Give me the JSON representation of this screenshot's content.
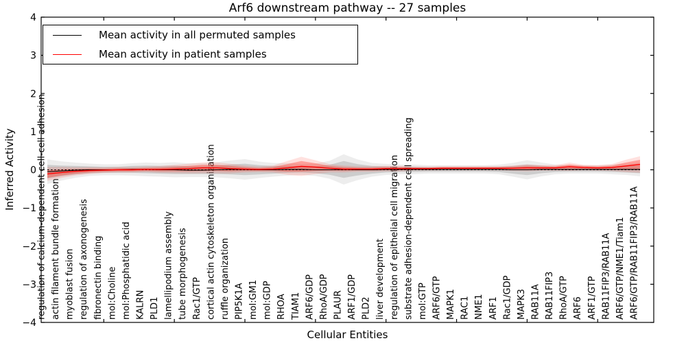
{
  "title": "Arf6 downstream pathway -- 27 samples",
  "ylabel": "Inferred Activity",
  "xlabel": "Cellular Entities",
  "legend": {
    "entries": [
      {
        "label": "Mean activity in all permuted samples",
        "color": "#000000"
      },
      {
        "label": "Mean activity in patient samples",
        "color": "#ff0000"
      }
    ],
    "position": "upper left"
  },
  "chart_data": {
    "type": "line",
    "title": "Arf6 downstream pathway -- 27 samples",
    "xlabel": "Cellular Entities",
    "ylabel": "Inferred Activity",
    "ylim": [
      -4,
      4
    ],
    "y_ticks": [
      4,
      3,
      2,
      1,
      0,
      -1,
      -2,
      -3,
      -4
    ],
    "y_tick_labels": [
      "4",
      "3",
      "2",
      "1",
      "0",
      "−1",
      "−2",
      "−3",
      "−4"
    ],
    "x_major_tick_indices": [
      4,
      9,
      14,
      19,
      24,
      29,
      34,
      39
    ],
    "grid": false,
    "zero_reference_line": {
      "style": "dashed",
      "color": "#000000",
      "y": 0
    },
    "legend_position": "upper left",
    "categories": [
      "regulation of calcium-dependent cell-cell adhesion",
      "actin filament bundle formation",
      "myoblast fusion",
      "regulation of axonogenesis",
      "fibronectin binding",
      "mol:Choline",
      "mol:Phosphatidic acid",
      "KALRN",
      "PLD1",
      "lamellipodium assembly",
      "tube morphogenesis",
      "Rac1/GTP",
      "cortical actin cytoskeleton organization",
      "ruffle organization",
      "PIP5K1A",
      "mol:GM1",
      "mol:GDP",
      "RHOA",
      "TIAM1",
      "ARF6/GDP",
      "RhoA/GDP",
      "PLAUR",
      "ARF1/GDP",
      "PLD2",
      "liver development",
      "regulation of epithelial cell migration",
      "substrate adhesion-dependent cell spreading",
      "mol:GTP",
      "ARF6/GTP",
      "MAPK1",
      "RAC1",
      "NME1",
      "ARF1",
      "Rac1/GDP",
      "MAPK3",
      "RAB11A",
      "RAB11FIP3",
      "RhoA/GTP",
      "ARF6",
      "ARF1/GTP",
      "RAB11FIP3/RAB11A",
      "ARF6/GTP/NME1/Tiam1",
      "ARF6/GTP/RAB11FIP3/RAB11A"
    ],
    "series": [
      {
        "name": "Mean activity in all permuted samples",
        "color": "#000000",
        "style": "solid",
        "values": [
          -0.05,
          -0.03,
          -0.01,
          0,
          0,
          0,
          0.01,
          0.01,
          0,
          0,
          -0.01,
          -0.01,
          0,
          0.01,
          0.01,
          0,
          0,
          0.01,
          0.01,
          0,
          0,
          0.01,
          0,
          0,
          0.01,
          0.01,
          0.01,
          0.01,
          0.01,
          0.01,
          0.01,
          0.01,
          0.01,
          0,
          0,
          0.01,
          0.01,
          0.01,
          0.01,
          0.01,
          0.01,
          0.01,
          0.01
        ]
      },
      {
        "name": "Mean activity in patient samples",
        "color": "#ff0000",
        "style": "solid",
        "values": [
          -0.11,
          -0.07,
          -0.04,
          -0.02,
          -0.01,
          0,
          0,
          0.01,
          0.01,
          0.02,
          0.03,
          0.05,
          0.05,
          0.03,
          0.02,
          0.01,
          0.02,
          0.05,
          0.09,
          0.07,
          0.04,
          0.02,
          0.02,
          0.02,
          0.03,
          0.03,
          0.03,
          0.03,
          0.04,
          0.04,
          0.04,
          0.04,
          0.04,
          0.04,
          0.05,
          0.05,
          0.05,
          0.08,
          0.06,
          0.05,
          0.06,
          0.1,
          0.14
        ]
      }
    ],
    "bands": [
      {
        "name": "permuted samples spread",
        "color": "#999999",
        "center_series": 0,
        "halfwidths": [
          0.18,
          0.14,
          0.11,
          0.09,
          0.08,
          0.08,
          0.09,
          0.1,
          0.1,
          0.11,
          0.1,
          0.1,
          0.11,
          0.13,
          0.15,
          0.12,
          0.1,
          0.09,
          0.08,
          0.09,
          0.13,
          0.22,
          0.15,
          0.1,
          0.08,
          0.07,
          0.07,
          0.06,
          0.06,
          0.06,
          0.06,
          0.06,
          0.07,
          0.1,
          0.14,
          0.1,
          0.07,
          0.06,
          0.06,
          0.06,
          0.07,
          0.08,
          0.1
        ]
      },
      {
        "name": "patient samples spread",
        "color": "#ff2a1a",
        "center_series": 1,
        "halfwidths": [
          0.1,
          0.08,
          0.06,
          0.05,
          0.04,
          0.04,
          0.04,
          0.04,
          0.05,
          0.06,
          0.07,
          0.08,
          0.08,
          0.07,
          0.05,
          0.04,
          0.05,
          0.1,
          0.14,
          0.1,
          0.06,
          0.05,
          0.04,
          0.04,
          0.04,
          0.04,
          0.03,
          0.03,
          0.03,
          0.03,
          0.03,
          0.03,
          0.03,
          0.04,
          0.05,
          0.04,
          0.04,
          0.06,
          0.04,
          0.04,
          0.05,
          0.09,
          0.12
        ]
      }
    ]
  }
}
